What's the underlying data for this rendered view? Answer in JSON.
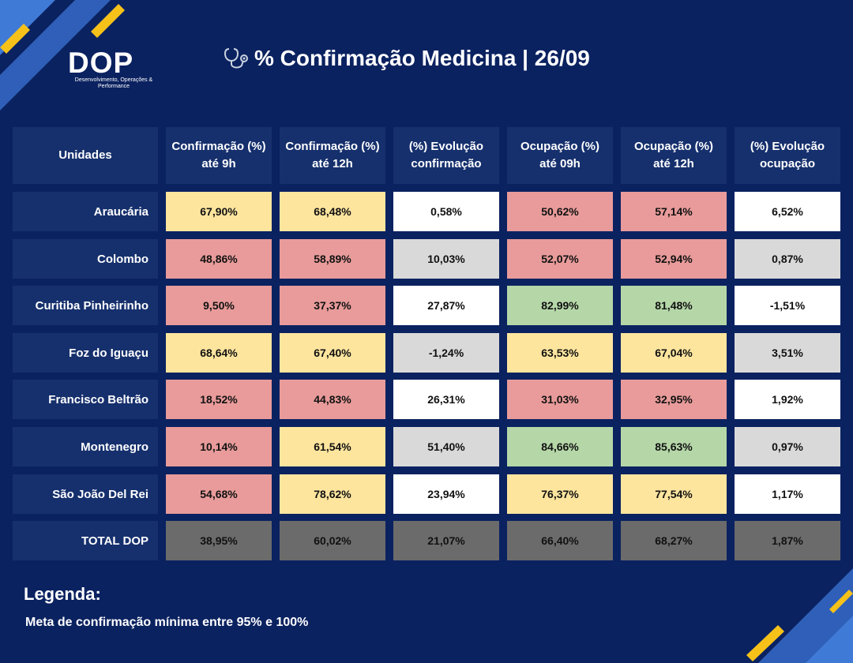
{
  "brand": {
    "logo_text": "DOP",
    "logo_subtitle": "Desenvolvimento, Operações & Performance"
  },
  "page": {
    "title": "% Confirmação Medicina | 26/09",
    "title_icon": "stethoscope-icon"
  },
  "table": {
    "headers": [
      "Unidades",
      "Confirmação (%) até 9h",
      "Confirmação (%) até 12h",
      "(%) Evolução confirmação",
      "Ocupação (%) até 09h",
      "Ocupação (%) até 12h",
      "(%) Evolução ocupação"
    ],
    "rows": [
      {
        "unit": "Araucária",
        "values": [
          "67,90%",
          "68,48%",
          "0,58%",
          "50,62%",
          "57,14%",
          "6,52%"
        ],
        "colors": [
          "yellow",
          "yellow",
          "white",
          "red",
          "red",
          "white"
        ]
      },
      {
        "unit": "Colombo",
        "values": [
          "48,86%",
          "58,89%",
          "10,03%",
          "52,07%",
          "52,94%",
          "0,87%"
        ],
        "colors": [
          "red",
          "red",
          "grey",
          "red",
          "red",
          "grey"
        ]
      },
      {
        "unit": "Curitiba Pinheirinho",
        "values": [
          "9,50%",
          "37,37%",
          "27,87%",
          "82,99%",
          "81,48%",
          "-1,51%"
        ],
        "colors": [
          "red",
          "red",
          "white",
          "green",
          "green",
          "white"
        ]
      },
      {
        "unit": "Foz do Iguaçu",
        "values": [
          "68,64%",
          "67,40%",
          "-1,24%",
          "63,53%",
          "67,04%",
          "3,51%"
        ],
        "colors": [
          "yellow",
          "yellow",
          "grey",
          "yellow",
          "yellow",
          "grey"
        ]
      },
      {
        "unit": "Francisco Beltrão",
        "values": [
          "18,52%",
          "44,83%",
          "26,31%",
          "31,03%",
          "32,95%",
          "1,92%"
        ],
        "colors": [
          "red",
          "red",
          "white",
          "red",
          "red",
          "white"
        ]
      },
      {
        "unit": "Montenegro",
        "values": [
          "10,14%",
          "61,54%",
          "51,40%",
          "84,66%",
          "85,63%",
          "0,97%"
        ],
        "colors": [
          "red",
          "yellow",
          "grey",
          "green",
          "green",
          "grey"
        ]
      },
      {
        "unit": "São João Del Rei",
        "values": [
          "54,68%",
          "78,62%",
          "23,94%",
          "76,37%",
          "77,54%",
          "1,17%"
        ],
        "colors": [
          "red",
          "yellow",
          "white",
          "yellow",
          "yellow",
          "white"
        ]
      },
      {
        "unit": "TOTAL DOP",
        "values": [
          "38,95%",
          "60,02%",
          "21,07%",
          "66,40%",
          "68,27%",
          "1,87%"
        ],
        "colors": [
          "dark",
          "dark",
          "dark",
          "dark",
          "dark",
          "dark"
        ]
      }
    ]
  },
  "legend": {
    "title": "Legenda:",
    "text": "Meta de confirmação mínima entre 95% e 100%"
  },
  "colors": {
    "background": "#0b2260",
    "header": "#16306d",
    "yellow": "#fde59e",
    "red": "#e89b9a",
    "green": "#b5d7a8",
    "white": "#ffffff",
    "grey": "#d9d9d9",
    "dark": "#6b6b6b",
    "accent_blue": "#3f7ad6",
    "accent_yellow": "#f6c21a"
  }
}
